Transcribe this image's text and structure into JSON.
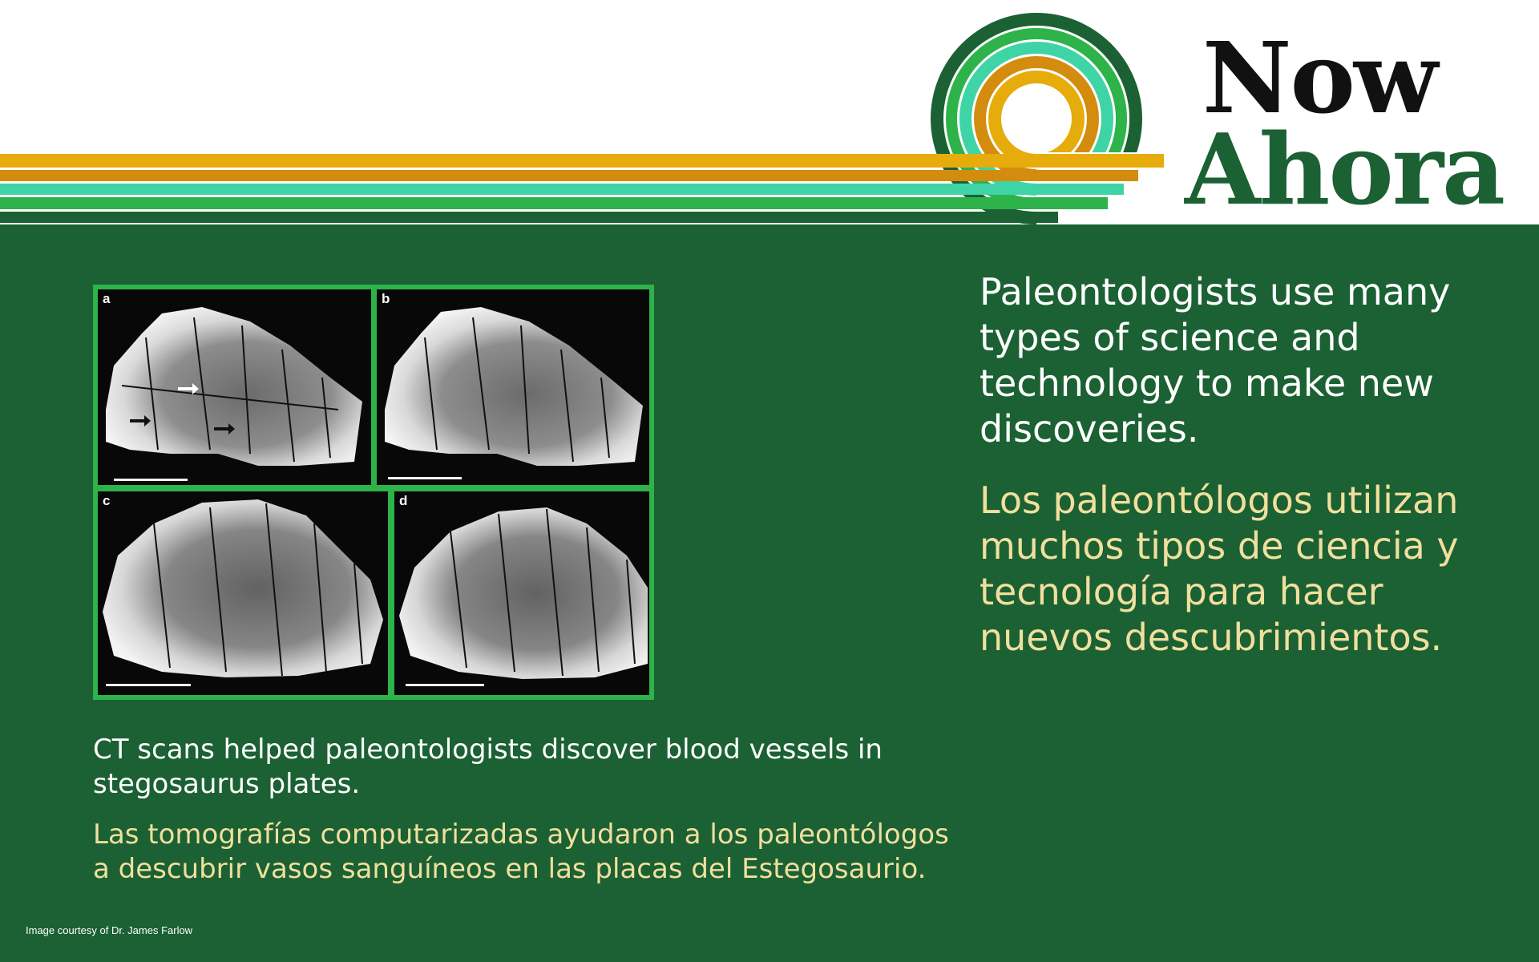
{
  "brand": {
    "title_en": "Now",
    "title_es": "Ahora",
    "logo_icon": "concentric-rainbow-arc-icon",
    "colors": {
      "dark_green": "#1b6133",
      "green": "#2eb34a",
      "teal": "#3fd4a6",
      "orange": "#d48c0f",
      "gold": "#e6ac0c",
      "cream": "#f1df9e"
    }
  },
  "main": {
    "text_en": "Paleontologists use many types of science and technology to make new discoveries.",
    "text_es": "Los paleontólogos utilizan muchos tipos de ciencia y tecnología para hacer nuevos descubrimientos."
  },
  "figure": {
    "panels": [
      {
        "letter": "a"
      },
      {
        "letter": "b"
      },
      {
        "letter": "c"
      },
      {
        "letter": "d"
      }
    ]
  },
  "caption": {
    "text_en": "CT scans helped paleontologists discover blood vessels in stegosaurus plates.",
    "text_es": "Las tomografías computarizadas ayudaron a los paleontólogos a descubrir vasos sanguíneos en las placas del Estegosaurio."
  },
  "credit": "Image courtesy of Dr. James Farlow"
}
